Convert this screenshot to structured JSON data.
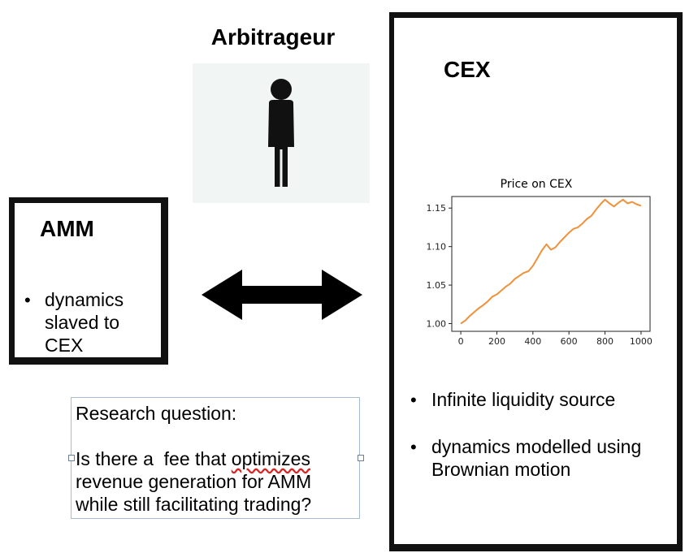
{
  "arbitrageur": {
    "title": "Arbitrageur",
    "icon": "person-icon",
    "panel_color": "#f1f5f3"
  },
  "amm": {
    "title": "AMM",
    "bullets": [
      "dynamics slaved to CEX"
    ]
  },
  "arrow": {
    "icon": "double-arrow-icon",
    "color": "#000000"
  },
  "cex": {
    "title": "CEX",
    "bullets": [
      "Infinite liquidity source",
      "dynamics modelled using Brownian motion"
    ]
  },
  "research": {
    "heading": "Research question:",
    "body_before": "Is there a  fee that ",
    "body_flagged": "optimizes",
    "body_after": "\nrevenue generation for AMM\nwhile still facilitating trading?"
  },
  "chart_data": {
    "type": "line",
    "title": "Price on CEX",
    "xlabel": "",
    "ylabel": "",
    "xlim": [
      -50,
      1050
    ],
    "ylim": [
      0.99,
      1.165
    ],
    "xticks": [
      0,
      200,
      400,
      600,
      800,
      1000
    ],
    "yticks": [
      1.0,
      1.05,
      1.1,
      1.15
    ],
    "ytick_labels": [
      "1.00",
      "1.05",
      "1.10",
      "1.15"
    ],
    "line_color": "#f0913a",
    "grid": false,
    "series": [
      {
        "x": [
          0,
          25,
          50,
          75,
          100,
          125,
          150,
          175,
          200,
          225,
          250,
          275,
          300,
          325,
          350,
          375,
          400,
          425,
          450,
          475,
          500,
          525,
          550,
          575,
          600,
          625,
          650,
          675,
          700,
          725,
          750,
          775,
          800,
          825,
          850,
          875,
          900,
          925,
          950,
          975,
          1000
        ],
        "values": [
          1.0,
          1.004,
          1.01,
          1.015,
          1.02,
          1.024,
          1.029,
          1.035,
          1.038,
          1.043,
          1.048,
          1.052,
          1.058,
          1.062,
          1.066,
          1.068,
          1.075,
          1.085,
          1.095,
          1.103,
          1.096,
          1.099,
          1.106,
          1.112,
          1.118,
          1.123,
          1.125,
          1.13,
          1.136,
          1.14,
          1.148,
          1.155,
          1.161,
          1.156,
          1.152,
          1.157,
          1.161,
          1.156,
          1.158,
          1.155,
          1.153
        ]
      }
    ]
  }
}
